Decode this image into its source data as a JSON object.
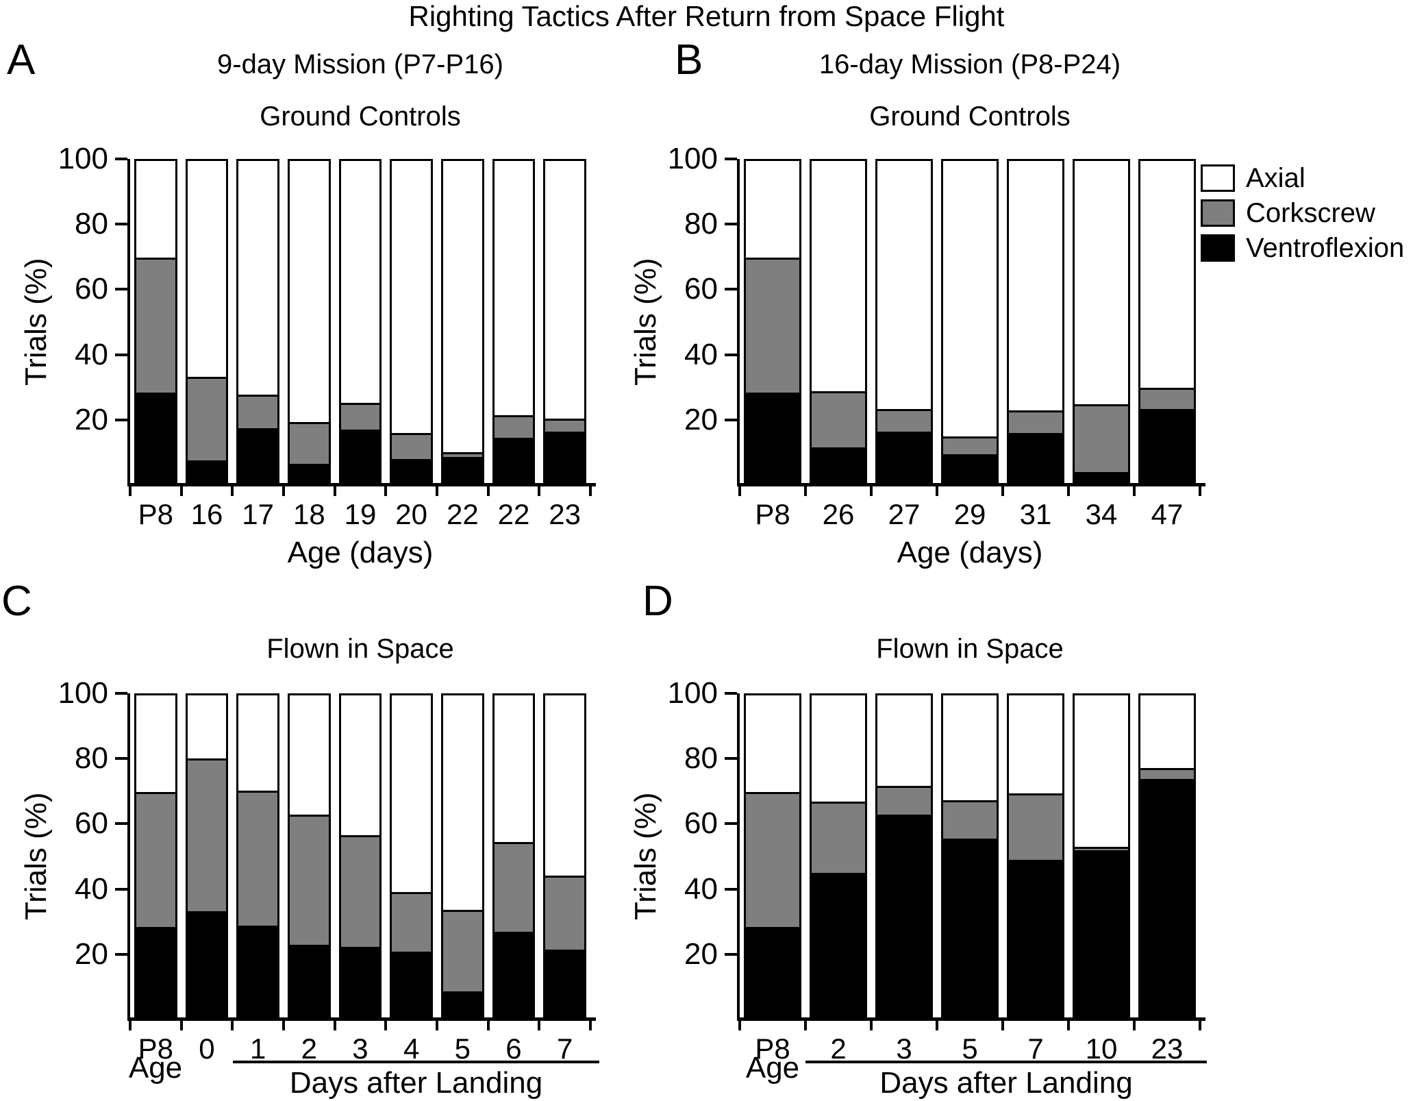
{
  "title": "Righting Tactics After Return from Space Flight",
  "legend": {
    "items": [
      {
        "label": "Axial",
        "color": "#ffffff"
      },
      {
        "label": "Corkscrew",
        "color": "#7f7f7f"
      },
      {
        "label": "Ventroflexion",
        "color": "#000000"
      }
    ],
    "position": "top-right-outside"
  },
  "chart_data": [
    {
      "panel_letter": "A",
      "type": "bar",
      "stacked": true,
      "title": "9-day Mission (P7-P16)",
      "subtitle": "Ground Controls",
      "xlabel": "Age (days)",
      "ylabel": "Trials (%)",
      "ylim": [
        0,
        100
      ],
      "yticks": [
        20,
        40,
        60,
        80,
        100
      ],
      "grid": false,
      "categories": [
        "P8",
        "16",
        "17",
        "18",
        "19",
        "20",
        "22",
        "22",
        "23"
      ],
      "series": [
        {
          "name": "Ventroflexion",
          "color": "#000000",
          "values": [
            28,
            7,
            17,
            6,
            16.5,
            7.5,
            8,
            14,
            16
          ]
        },
        {
          "name": "Corkscrew",
          "color": "#7f7f7f",
          "values": [
            42,
            26,
            10.5,
            13,
            8.5,
            8,
            1.5,
            7,
            4
          ]
        },
        {
          "name": "Axial",
          "color": "#ffffff",
          "values": [
            30,
            67,
            72.5,
            81,
            75,
            84.5,
            90.5,
            79,
            80
          ]
        }
      ]
    },
    {
      "panel_letter": "B",
      "type": "bar",
      "stacked": true,
      "title": "16-day Mission (P8-P24)",
      "subtitle": "Ground Controls",
      "xlabel": "Age (days)",
      "ylabel": "Trials (%)",
      "ylim": [
        0,
        100
      ],
      "yticks": [
        20,
        40,
        60,
        80,
        100
      ],
      "grid": false,
      "categories": [
        "P8",
        "26",
        "27",
        "29",
        "31",
        "34",
        "47"
      ],
      "series": [
        {
          "name": "Ventroflexion",
          "color": "#000000",
          "values": [
            28,
            11,
            16,
            9,
            15.5,
            3.5,
            23
          ]
        },
        {
          "name": "Corkscrew",
          "color": "#7f7f7f",
          "values": [
            42,
            17.5,
            7,
            5.5,
            7,
            21,
            6.5
          ]
        },
        {
          "name": "Axial",
          "color": "#ffffff",
          "values": [
            30,
            71.5,
            77,
            85.5,
            77.5,
            75.5,
            70.5
          ]
        }
      ]
    },
    {
      "panel_letter": "C",
      "type": "bar",
      "stacked": true,
      "title": "Flown in Space",
      "ylabel": "Trials (%)",
      "x_first_note": "Age",
      "x_group_label": "Days after Landing",
      "x_group_start_index": 2,
      "ylim": [
        0,
        100
      ],
      "yticks": [
        20,
        40,
        60,
        80,
        100
      ],
      "grid": false,
      "categories": [
        "P8",
        "0",
        "1",
        "2",
        "3",
        "4",
        "5",
        "6",
        "7"
      ],
      "series": [
        {
          "name": "Ventroflexion",
          "color": "#000000",
          "values": [
            28,
            33,
            28.5,
            22.5,
            22,
            20.5,
            8,
            26.5,
            21
          ]
        },
        {
          "name": "Corkscrew",
          "color": "#7f7f7f",
          "values": [
            42,
            47.5,
            42,
            40.5,
            34.5,
            18.5,
            25.5,
            28,
            23
          ]
        },
        {
          "name": "Axial",
          "color": "#ffffff",
          "values": [
            30,
            19.5,
            29.5,
            37,
            43.5,
            61,
            66.5,
            45.5,
            56
          ]
        }
      ]
    },
    {
      "panel_letter": "D",
      "type": "bar",
      "stacked": true,
      "title": "Flown in Space",
      "ylabel": "Trials (%)",
      "x_first_note": "Age",
      "x_group_label": "Days after Landing",
      "x_group_start_index": 1,
      "ylim": [
        0,
        100
      ],
      "yticks": [
        20,
        40,
        60,
        80,
        100
      ],
      "grid": false,
      "categories": [
        "P8",
        "2",
        "3",
        "5",
        "7",
        "10",
        "23"
      ],
      "series": [
        {
          "name": "Ventroflexion",
          "color": "#000000",
          "values": [
            28,
            45,
            63,
            55.5,
            49,
            52,
            74
          ]
        },
        {
          "name": "Corkscrew",
          "color": "#7f7f7f",
          "values": [
            42,
            22,
            9,
            12,
            20.5,
            1,
            3.5
          ]
        },
        {
          "name": "Axial",
          "color": "#ffffff",
          "values": [
            30,
            33,
            28,
            32.5,
            30.5,
            47,
            22.5
          ]
        }
      ]
    }
  ]
}
